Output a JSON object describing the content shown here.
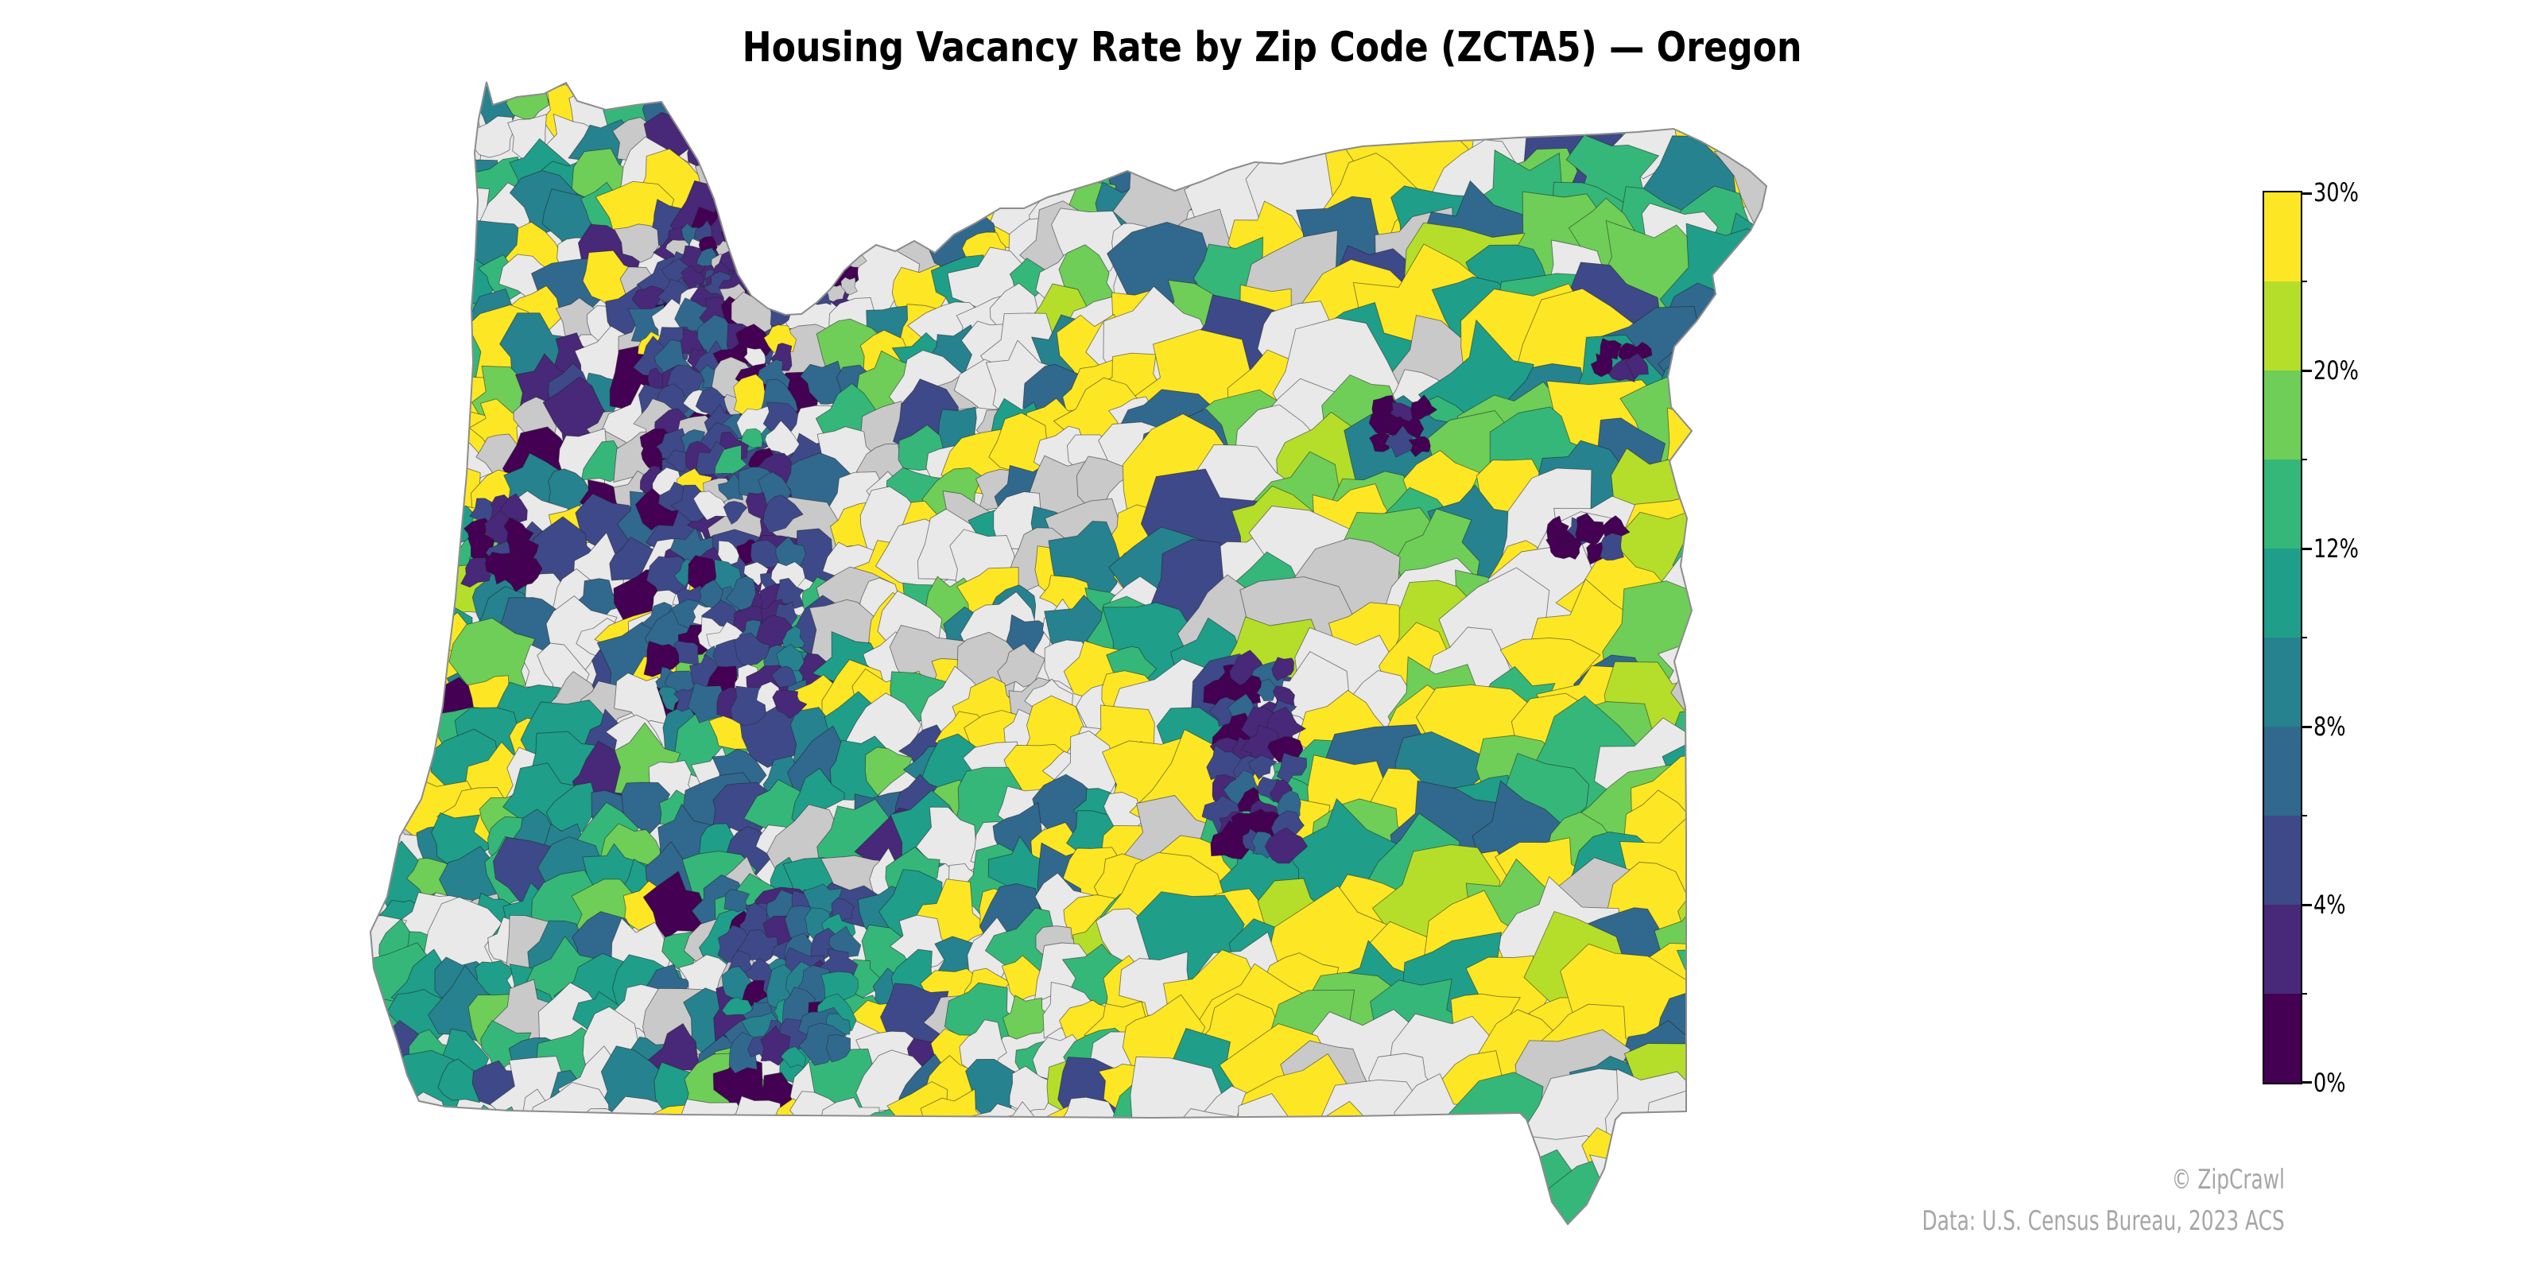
{
  "title": "Housing Vacancy Rate by Zip Code (ZCTA5) — Oregon",
  "attribution": {
    "copyright": "© ZipCrawl",
    "source": "Data: U.S. Census Bureau, 2023 ACS"
  },
  "colorbar": {
    "orientation": "vertical-right",
    "ticks": [
      {
        "value": 0,
        "label": "0%"
      },
      {
        "value": 2,
        "label": ""
      },
      {
        "value": 4,
        "label": "4%"
      },
      {
        "value": 6,
        "label": ""
      },
      {
        "value": 8,
        "label": "8%"
      },
      {
        "value": 10,
        "label": ""
      },
      {
        "value": 12,
        "label": "12%"
      },
      {
        "value": 16,
        "label": ""
      },
      {
        "value": 20,
        "label": "20%"
      },
      {
        "value": 25,
        "label": ""
      },
      {
        "value": 30,
        "label": "30%"
      }
    ],
    "classes": [
      {
        "min": 0,
        "max": 2,
        "color": "#440154"
      },
      {
        "min": 2,
        "max": 4,
        "color": "#482878"
      },
      {
        "min": 4,
        "max": 6,
        "color": "#3e4989"
      },
      {
        "min": 6,
        "max": 8,
        "color": "#31688e"
      },
      {
        "min": 8,
        "max": 10,
        "color": "#26828e"
      },
      {
        "min": 10,
        "max": 12,
        "color": "#1f9e89"
      },
      {
        "min": 12,
        "max": 16,
        "color": "#35b779"
      },
      {
        "min": 16,
        "max": 20,
        "color": "#6ece58"
      },
      {
        "min": 20,
        "max": 25,
        "color": "#b5de2b"
      },
      {
        "min": 25,
        "max": 30,
        "color": "#fde725"
      }
    ]
  },
  "chart_data": {
    "type": "choropleth",
    "title": "Housing Vacancy Rate by Zip Code (ZCTA5) — Oregon",
    "region": "Oregon",
    "unit": "ZCTA5 zip code tabulation areas",
    "metric": "Housing vacancy rate (%)",
    "class_breaks_pct": [
      0,
      2,
      4,
      6,
      8,
      10,
      12,
      16,
      20,
      25,
      30
    ],
    "palette_name": "viridis (10 discrete classes)",
    "palette": [
      "#440154",
      "#482878",
      "#3e4989",
      "#31688e",
      "#26828e",
      "#1f9e89",
      "#35b779",
      "#6ece58",
      "#b5de2b",
      "#fde725"
    ],
    "no_data_colors": [
      "#e9e9e9",
      "#c9c9c9"
    ],
    "labeled_ticks": [
      "0%",
      "4%",
      "8%",
      "12%",
      "20%",
      "30%"
    ],
    "legend_position": "right",
    "source": "U.S. Census Bureau, 2023 ACS",
    "watermark": "© ZipCrawl"
  },
  "map": {
    "state": "Oregon",
    "geography": "ZCTA5",
    "background": "#ffffff",
    "boundary_line_color": "#1f1f1f",
    "state_outline_color": "#8c8c8c",
    "zones": [
      {
        "name": "portland-metro",
        "u": [
          0.2,
          0.36
        ],
        "v": [
          0.13,
          0.25
        ],
        "colors": [
          [
            "#482878",
            2.6
          ],
          [
            "#3e4989",
            2.4
          ],
          [
            "#440154",
            1.8
          ],
          [
            "#31688e",
            1.6
          ],
          [
            "#c9c9c9",
            1.2
          ],
          [
            "#e9e9e9",
            1.2
          ],
          [
            "#26828e",
            0.5
          ],
          [
            "#fde725",
            0.5
          ],
          [
            "#1f9e89",
            0.4
          ]
        ]
      },
      {
        "name": "north-coast",
        "u": [
          0,
          0.21
        ],
        "v": [
          0,
          0.16
        ],
        "colors": [
          [
            "#26828e",
            2.6
          ],
          [
            "#1f9e89",
            2.0
          ],
          [
            "#35b779",
            1.5
          ],
          [
            "#e9e9e9",
            2.2
          ],
          [
            "#fde725",
            2.0
          ],
          [
            "#c9c9c9",
            1.1
          ],
          [
            "#3e4989",
            0.6
          ],
          [
            "#6ece58",
            0.5
          ]
        ]
      },
      {
        "name": "coast",
        "u": [
          0,
          0.115
        ],
        "v": [
          0.16,
          0.72
        ],
        "colors": [
          [
            "#fde725",
            3.6
          ],
          [
            "#35b779",
            1.5
          ],
          [
            "#6ece58",
            1.1
          ],
          [
            "#1f9e89",
            1.4
          ],
          [
            "#26828e",
            1.1
          ],
          [
            "#e9e9e9",
            1.7
          ],
          [
            "#c9c9c9",
            0.8
          ],
          [
            "#440154",
            0.3
          ],
          [
            "#b5de2b",
            0.4
          ]
        ]
      },
      {
        "name": "south-coast",
        "u": [
          0,
          0.13
        ],
        "v": [
          0.72,
          1
        ],
        "colors": [
          [
            "#1f9e89",
            2.8
          ],
          [
            "#26828e",
            1.8
          ],
          [
            "#35b779",
            1.9
          ],
          [
            "#6ece58",
            1.0
          ],
          [
            "#fde725",
            1.1
          ],
          [
            "#e9e9e9",
            1.2
          ],
          [
            "#3e4989",
            0.6
          ],
          [
            "#c9c9c9",
            0.5
          ]
        ]
      },
      {
        "name": "willamette-valley",
        "u": [
          0.115,
          0.33
        ],
        "v": [
          0,
          0.62
        ],
        "colors": [
          [
            "#482878",
            2.0
          ],
          [
            "#3e4989",
            2.0
          ],
          [
            "#440154",
            1.1
          ],
          [
            "#31688e",
            1.7
          ],
          [
            "#e9e9e9",
            2.6
          ],
          [
            "#c9c9c9",
            1.5
          ],
          [
            "#26828e",
            1.0
          ],
          [
            "#35b779",
            1.1
          ],
          [
            "#fde725",
            1.2
          ],
          [
            "#6ece58",
            0.6
          ],
          [
            "#1f9e89",
            0.9
          ]
        ]
      },
      {
        "name": "southwest",
        "u": [
          0.115,
          0.42
        ],
        "v": [
          0.62,
          1
        ],
        "colors": [
          [
            "#1f9e89",
            2.5
          ],
          [
            "#26828e",
            2.0
          ],
          [
            "#3e4989",
            1.6
          ],
          [
            "#31688e",
            1.6
          ],
          [
            "#e9e9e9",
            2.6
          ],
          [
            "#c9c9c9",
            1.2
          ],
          [
            "#35b779",
            1.4
          ],
          [
            "#fde725",
            0.9
          ],
          [
            "#482878",
            0.7
          ],
          [
            "#6ece58",
            0.9
          ],
          [
            "#440154",
            0.3
          ]
        ]
      },
      {
        "name": "cascades",
        "u": [
          0.33,
          0.52
        ],
        "v": [
          0,
          0.62
        ],
        "colors": [
          [
            "#e9e9e9",
            4.0
          ],
          [
            "#c9c9c9",
            1.6
          ],
          [
            "#fde725",
            2.2
          ],
          [
            "#31688e",
            1.1
          ],
          [
            "#26828e",
            1.0
          ],
          [
            "#35b779",
            1.0
          ],
          [
            "#1f9e89",
            0.8
          ],
          [
            "#6ece58",
            0.7
          ],
          [
            "#3e4989",
            0.6
          ],
          [
            "#b5de2b",
            0.3
          ]
        ]
      },
      {
        "name": "south-central",
        "u": [
          0.42,
          0.68
        ],
        "v": [
          0.62,
          1
        ],
        "colors": [
          [
            "#fde725",
            3.0
          ],
          [
            "#e9e9e9",
            3.2
          ],
          [
            "#1f9e89",
            1.2
          ],
          [
            "#35b779",
            1.0
          ],
          [
            "#c9c9c9",
            0.9
          ],
          [
            "#26828e",
            0.7
          ],
          [
            "#b5de2b",
            0.5
          ],
          [
            "#6ece58",
            0.5
          ],
          [
            "#31688e",
            0.35
          ],
          [
            "#3e4989",
            0.3
          ]
        ]
      },
      {
        "name": "central",
        "u": [
          0.52,
          0.68
        ],
        "v": [
          0,
          0.62
        ],
        "colors": [
          [
            "#e9e9e9",
            3.8
          ],
          [
            "#fde725",
            2.6
          ],
          [
            "#c9c9c9",
            1.4
          ],
          [
            "#31688e",
            1.2
          ],
          [
            "#26828e",
            0.9
          ],
          [
            "#35b779",
            1.0
          ],
          [
            "#6ece58",
            0.9
          ],
          [
            "#1f9e89",
            0.7
          ],
          [
            "#b5de2b",
            0.4
          ],
          [
            "#3e4989",
            0.6
          ]
        ]
      },
      {
        "name": "northeast",
        "u": [
          0.68,
          1
        ],
        "v": [
          0,
          0.38
        ],
        "colors": [
          [
            "#fde725",
            2.7
          ],
          [
            "#35b779",
            2.0
          ],
          [
            "#1f9e89",
            1.5
          ],
          [
            "#26828e",
            1.2
          ],
          [
            "#6ece58",
            1.7
          ],
          [
            "#b5de2b",
            1.0
          ],
          [
            "#31688e",
            1.2
          ],
          [
            "#3e4989",
            0.8
          ],
          [
            "#e9e9e9",
            1.4
          ],
          [
            "#c9c9c9",
            0.9
          ]
        ]
      },
      {
        "name": "east",
        "u": [
          0.68,
          1
        ],
        "v": [
          0.38,
          1
        ],
        "colors": [
          [
            "#fde725",
            5.0
          ],
          [
            "#e9e9e9",
            2.3
          ],
          [
            "#6ece58",
            1.4
          ],
          [
            "#b5de2b",
            1.1
          ],
          [
            "#35b779",
            1.2
          ],
          [
            "#1f9e89",
            0.8
          ],
          [
            "#26828e",
            0.6
          ],
          [
            "#c9c9c9",
            0.6
          ],
          [
            "#31688e",
            0.4
          ]
        ]
      },
      {
        "name": "default",
        "u": [
          0,
          1
        ],
        "v": [
          0,
          1
        ],
        "colors": [
          [
            "#e9e9e9",
            1.0
          ],
          [
            "#fde725",
            0.4
          ],
          [
            "#35b779",
            0.3
          ]
        ]
      }
    ],
    "clusters": [
      {
        "name": "portland-dense",
        "u": [
          0.225,
          0.355
        ],
        "v": [
          0.148,
          0.212
        ],
        "step": 18,
        "r": [
          11,
          20
        ],
        "colors": [
          [
            "#440154",
            3.0
          ],
          [
            "#482878",
            3.0
          ],
          [
            "#3e4989",
            2.2
          ],
          [
            "#31688e",
            1.2
          ],
          [
            "#c9c9c9",
            0.8
          ],
          [
            "#e9e9e9",
            0.6
          ],
          [
            "#26828e",
            0.35
          ]
        ]
      },
      {
        "name": "salem-corridor",
        "u": [
          0.205,
          0.3
        ],
        "v": [
          0.212,
          0.42
        ],
        "step": 26,
        "r": [
          16,
          30
        ],
        "colors": [
          [
            "#482878",
            2.6
          ],
          [
            "#3e4989",
            2.4
          ],
          [
            "#440154",
            1.6
          ],
          [
            "#31688e",
            1.6
          ],
          [
            "#c9c9c9",
            1.0
          ],
          [
            "#e9e9e9",
            1.0
          ],
          [
            "#fde725",
            0.5
          ],
          [
            "#35b779",
            0.4
          ]
        ]
      },
      {
        "name": "eugene",
        "u": [
          0.215,
          0.31
        ],
        "v": [
          0.46,
          0.6
        ],
        "step": 26,
        "r": [
          16,
          30
        ],
        "colors": [
          [
            "#3e4989",
            2.6
          ],
          [
            "#31688e",
            2.0
          ],
          [
            "#482878",
            1.6
          ],
          [
            "#440154",
            0.9
          ],
          [
            "#26828e",
            0.8
          ],
          [
            "#e9e9e9",
            0.8
          ]
        ]
      },
      {
        "name": "medford",
        "u": [
          0.265,
          0.345
        ],
        "v": [
          0.8,
          0.94
        ],
        "step": 26,
        "r": [
          16,
          30
        ],
        "colors": [
          [
            "#3e4989",
            2.6
          ],
          [
            "#31688e",
            2.0
          ],
          [
            "#482878",
            1.2
          ],
          [
            "#1f9e89",
            0.9
          ],
          [
            "#26828e",
            0.9
          ],
          [
            "#440154",
            0.5
          ]
        ]
      },
      {
        "name": "lapine-strip",
        "u": [
          0.615,
          0.665
        ],
        "v": [
          0.575,
          0.745
        ],
        "step": 24,
        "r": [
          15,
          28
        ],
        "colors": [
          [
            "#482878",
            2.8
          ],
          [
            "#3e4989",
            1.8
          ],
          [
            "#440154",
            1.6
          ],
          [
            "#31688e",
            0.8
          ]
        ]
      },
      {
        "name": "baker",
        "u": [
          0.725,
          0.76
        ],
        "v": [
          0.32,
          0.36
        ],
        "step": 22,
        "r": [
          13,
          22
        ],
        "colors": [
          [
            "#440154",
            2.5
          ],
          [
            "#482878",
            1.5
          ],
          [
            "#3e4989",
            1.0
          ]
        ]
      },
      {
        "name": "snake-dark",
        "u": [
          0.885,
          0.912
        ],
        "v": [
          0.262,
          0.29
        ],
        "step": 20,
        "r": [
          12,
          20
        ],
        "colors": [
          [
            "#440154",
            3.0
          ],
          [
            "#482878",
            1.0
          ]
        ]
      },
      {
        "name": "east-dark",
        "u": [
          0.85,
          0.888
        ],
        "v": [
          0.438,
          0.468
        ],
        "step": 22,
        "r": [
          13,
          22
        ],
        "colors": [
          [
            "#440154",
            3.0
          ],
          [
            "#3e4989",
            0.8
          ]
        ]
      },
      {
        "name": "coast-dark",
        "u": [
          0.082,
          0.118
        ],
        "v": [
          0.42,
          0.49
        ],
        "step": 24,
        "r": [
          14,
          26
        ],
        "colors": [
          [
            "#440154",
            2.5
          ],
          [
            "#482878",
            1.2
          ],
          [
            "#3e4989",
            0.8
          ]
        ]
      }
    ]
  }
}
